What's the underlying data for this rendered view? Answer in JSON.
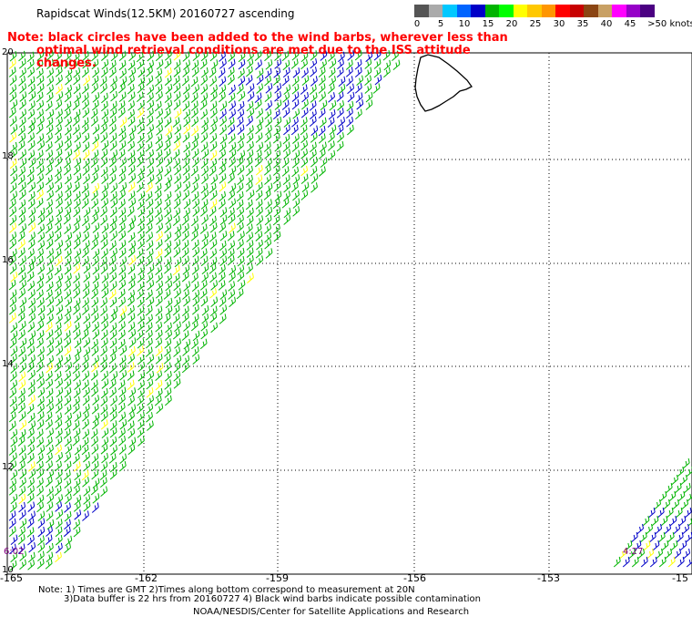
{
  "title": "Rapidscat Winds(12.5KM) 20160727 ascending",
  "note": {
    "line1": "Note: black circles have been added to the wind barbs, wherever less than",
    "line2": "optimal wind retrieval conditions are met due to the ISS attitude changes."
  },
  "colorbar": {
    "labels": [
      "0",
      "5",
      "10",
      "15",
      "20",
      "25",
      "30",
      "35",
      "40",
      "45",
      ">50 knots"
    ],
    "colors": [
      "#555555",
      "#aaaaaa",
      "#00c8ff",
      "#0064ff",
      "#0000c8",
      "#00b400",
      "#00ff00",
      "#ffff00",
      "#ffc800",
      "#ff9600",
      "#ff0000",
      "#c80000",
      "#8b4513",
      "#c8a064",
      "#ff00ff",
      "#9600c8",
      "#4b0082"
    ]
  },
  "axes": {
    "lon_labels": [
      "-165",
      "-162",
      "-159",
      "-156",
      "-153",
      "-15"
    ],
    "lat_labels": [
      "20",
      "18",
      "16",
      "14",
      "12",
      "10"
    ]
  },
  "timestamps": {
    "left": "6:02",
    "right": "4:27"
  },
  "footnote": {
    "line1": "Note: 1) Times are GMT 2)Times along bottom correspond to measurement at 20N",
    "line2": "3)Data buffer is 22 hrs from 20160727 4) Black wind barbs indicate possible contamination"
  },
  "credit": "NOAA/NESDIS/Center for Satellite Applications and Research",
  "legend_colors": {
    "calm": "#0000c8",
    "light": "#00b400",
    "moderate": "#ffff00",
    "strong": "#ff9600"
  }
}
